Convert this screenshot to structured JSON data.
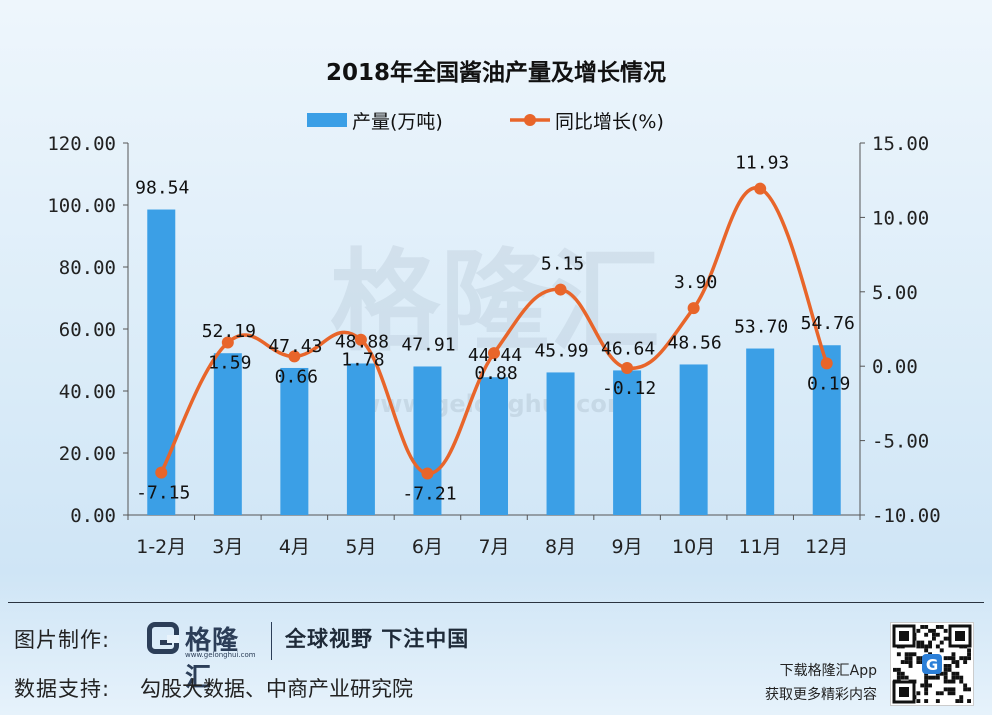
{
  "chart_data": {
    "type": "bar+line",
    "title": "2018年全国酱油产量及增长情况",
    "categories": [
      "1-2月",
      "3月",
      "4月",
      "5月",
      "6月",
      "7月",
      "8月",
      "9月",
      "10月",
      "11月",
      "12月"
    ],
    "series": [
      {
        "name": "产量(万吨)",
        "type": "bar",
        "axis": "left",
        "color": "#3b9fe6",
        "values": [
          98.54,
          52.19,
          47.43,
          48.88,
          47.91,
          44.44,
          45.99,
          46.64,
          48.56,
          53.7,
          54.76
        ],
        "labels": [
          "98.54",
          "52.19",
          "47.43",
          "48.88",
          "47.91",
          "44.44",
          "45.99",
          "46.64",
          "48.56",
          "53.70",
          "54.76"
        ]
      },
      {
        "name": "同比增长(%)",
        "type": "line",
        "axis": "right",
        "color": "#e8652a",
        "values": [
          -7.15,
          1.59,
          0.66,
          1.78,
          -7.21,
          0.88,
          5.15,
          -0.12,
          3.9,
          11.93,
          0.19
        ],
        "labels": [
          "-7.15",
          "1.59",
          "0.66",
          "1.78",
          "-7.21",
          "0.88",
          "5.15",
          "-0.12",
          "3.90",
          "11.93",
          "0.19"
        ]
      }
    ],
    "ylim_left": [
      0,
      120
    ],
    "ylim_right": [
      -10,
      15
    ],
    "yticks_left": [
      "0.00",
      "20.00",
      "40.00",
      "60.00",
      "80.00",
      "100.00",
      "120.00"
    ],
    "yticks_right": [
      "-10.00",
      "-5.00",
      "0.00",
      "5.00",
      "10.00",
      "15.00"
    ],
    "legend": "top-center",
    "grid": false
  },
  "watermark": "格隆汇",
  "watermark_url": "www.gelonghui.com",
  "footer": {
    "made_by_label": "图片制作:",
    "logo_name": "格隆汇",
    "logo_url": "www.gelonghui.com",
    "slogan": "全球视野 下注中国",
    "data_support_label": "数据支持:",
    "data_support_value": "勾股大数据、中商产业研究院",
    "download_line1": "下载格隆汇App",
    "download_line2": "获取更多精彩内容"
  },
  "colors": {
    "bar": "#3b9fe6",
    "line": "#e8652a",
    "axis": "#555555"
  }
}
